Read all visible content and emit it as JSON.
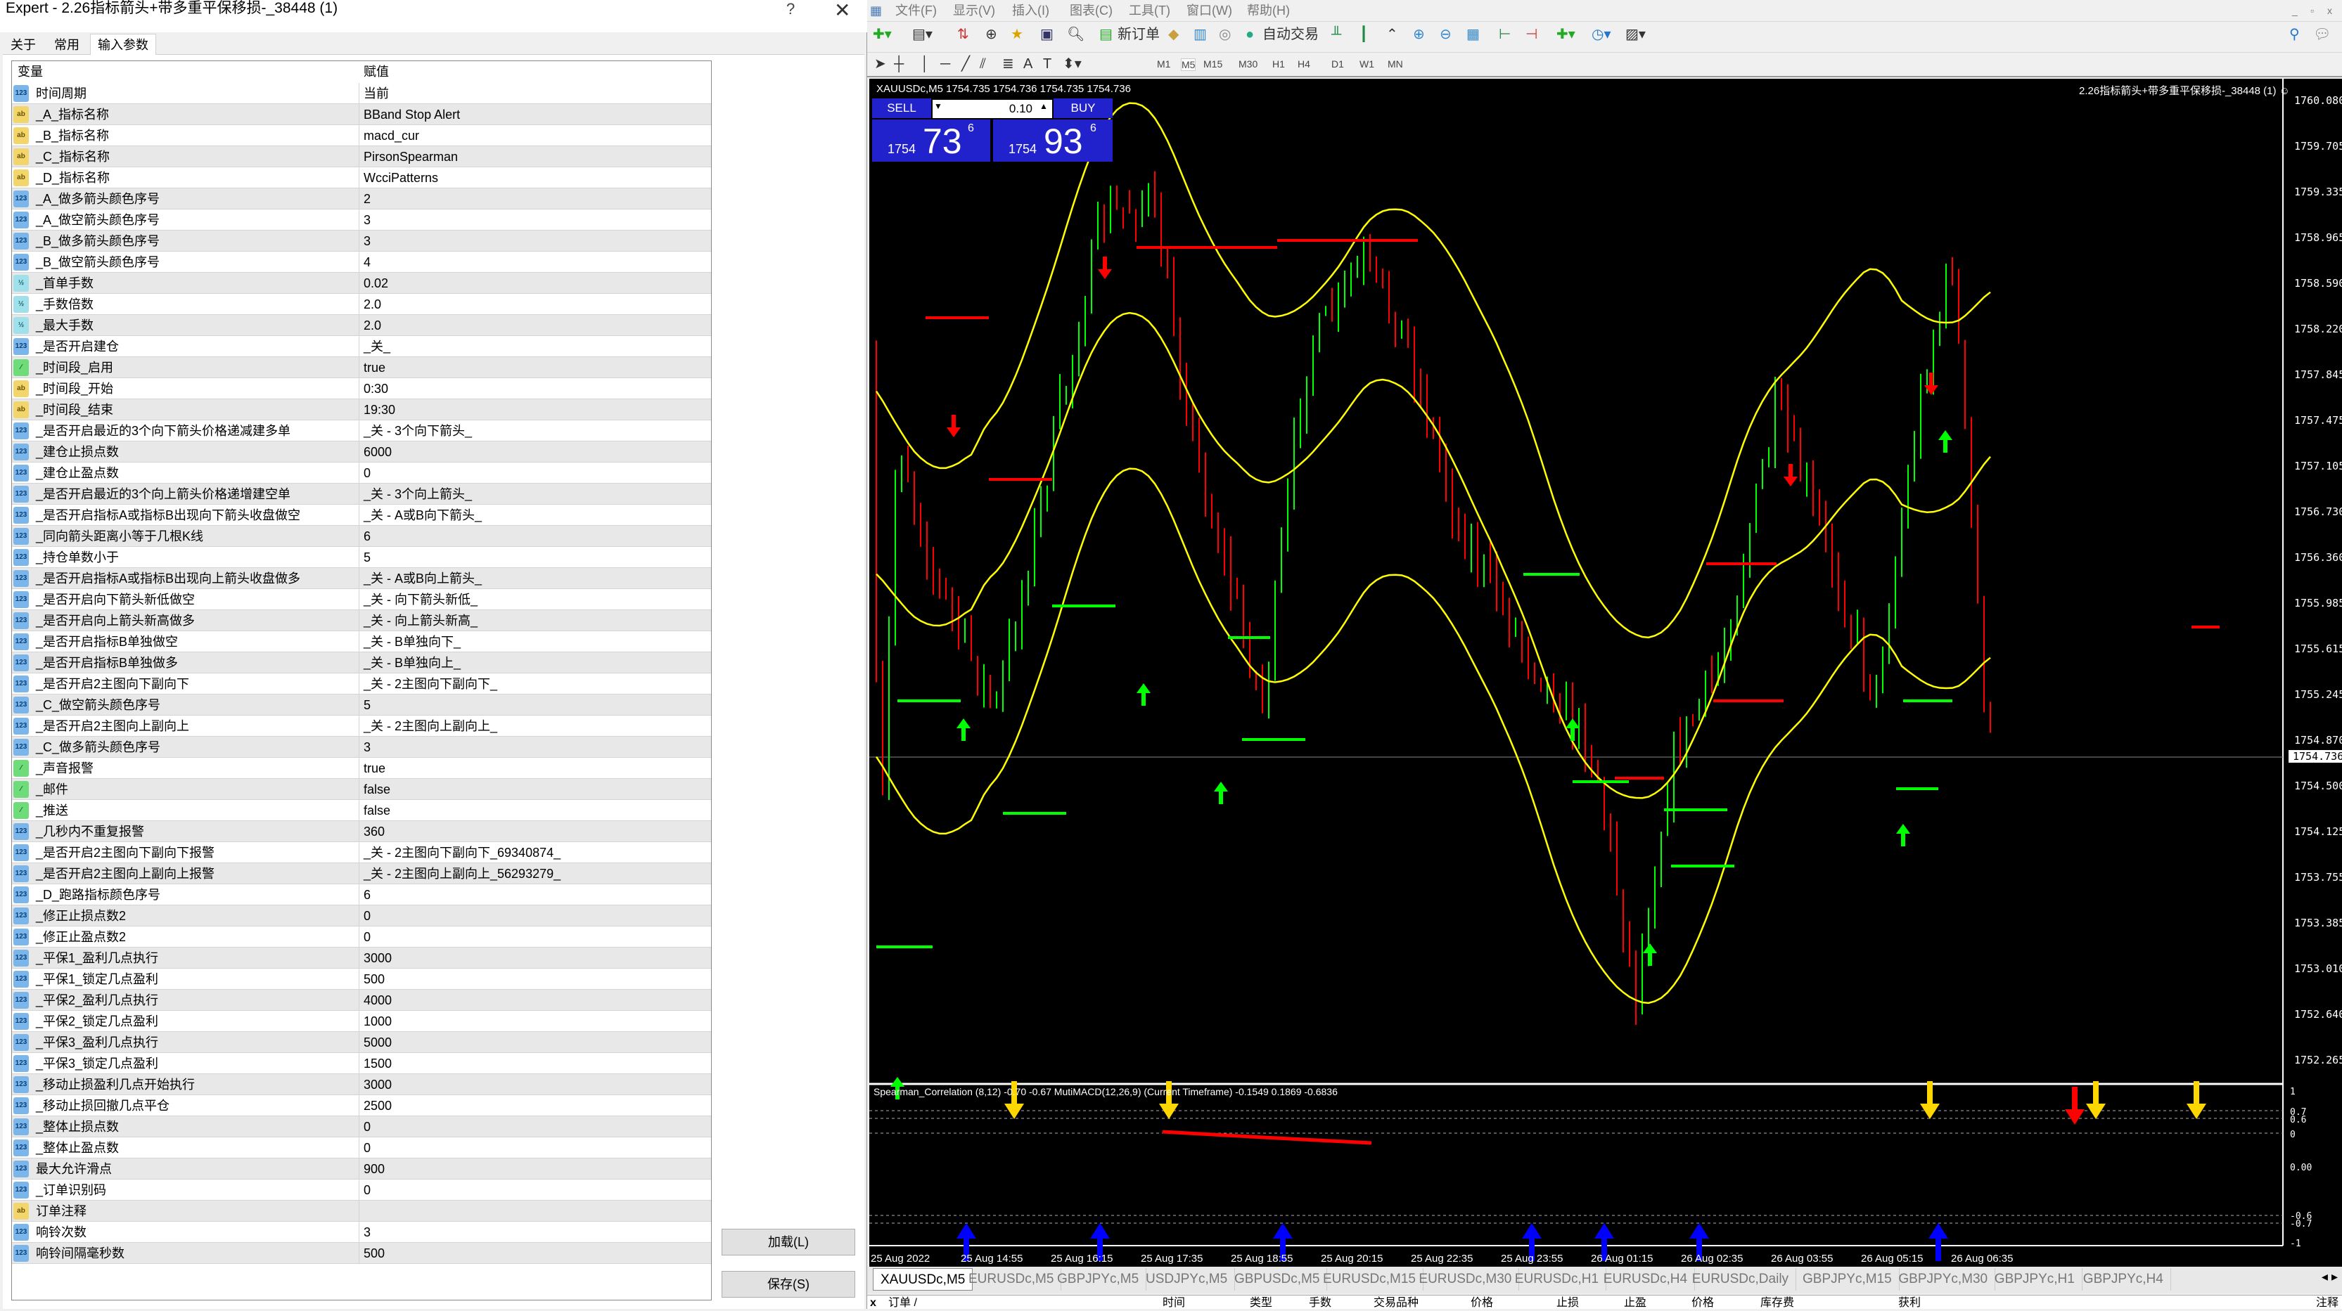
{
  "dialog": {
    "title": "Expert - 2.26指标箭头+带多重平保移损-_38448 (1)",
    "help": "?",
    "close": "✕",
    "tabs": [
      "关于",
      "常用",
      "输入参数"
    ],
    "active_tab": "输入参数",
    "columns": {
      "variable": "变量",
      "value": "赋值"
    },
    "rows": [
      {
        "type": "int",
        "name": "时间周期",
        "value": "当前"
      },
      {
        "type": "str",
        "name": "_A_指标名称",
        "value": "BBand Stop Alert"
      },
      {
        "type": "str",
        "name": "_B_指标名称",
        "value": "macd_cur"
      },
      {
        "type": "str",
        "name": "_C_指标名称",
        "value": "PirsonSpearman"
      },
      {
        "type": "str",
        "name": "_D_指标名称",
        "value": "WcciPatterns"
      },
      {
        "type": "int",
        "name": "_A_做多箭头颜色序号",
        "value": "2"
      },
      {
        "type": "int",
        "name": "_A_做空箭头颜色序号",
        "value": "3"
      },
      {
        "type": "int",
        "name": "_B_做多箭头颜色序号",
        "value": "3"
      },
      {
        "type": "int",
        "name": "_B_做空箭头颜色序号",
        "value": "4"
      },
      {
        "type": "dbl",
        "name": "_首单手数",
        "value": "0.02"
      },
      {
        "type": "dbl",
        "name": "_手数倍数",
        "value": "2.0"
      },
      {
        "type": "dbl",
        "name": "_最大手数",
        "value": "2.0"
      },
      {
        "type": "int",
        "name": "_是否开启建仓",
        "value": "_关_"
      },
      {
        "type": "bool",
        "name": "_时间段_启用",
        "value": "true"
      },
      {
        "type": "str",
        "name": "_时间段_开始",
        "value": "0:30"
      },
      {
        "type": "str",
        "name": "_时间段_结束",
        "value": "19:30"
      },
      {
        "type": "int",
        "name": "_是否开启最近的3个向下箭头价格递减建多单",
        "value": "_关 - 3个向下箭头_"
      },
      {
        "type": "int",
        "name": "_建仓止损点数",
        "value": "6000"
      },
      {
        "type": "int",
        "name": "_建仓止盈点数",
        "value": "0"
      },
      {
        "type": "int",
        "name": "_是否开启最近的3个向上箭头价格递增建空单",
        "value": "_关 - 3个向上箭头_"
      },
      {
        "type": "int",
        "name": "_是否开启指标A或指标B出现向下箭头收盘做空",
        "value": "_关 - A或B向下箭头_"
      },
      {
        "type": "int",
        "name": "_同向箭头距离小等于几根K线",
        "value": "6"
      },
      {
        "type": "int",
        "name": "_持仓单数小于",
        "value": "5"
      },
      {
        "type": "int",
        "name": "_是否开启指标A或指标B出现向上箭头收盘做多",
        "value": "_关 - A或B向上箭头_"
      },
      {
        "type": "int",
        "name": "_是否开启向下箭头新低做空",
        "value": "_关 - 向下箭头新低_"
      },
      {
        "type": "int",
        "name": "_是否开启向上箭头新高做多",
        "value": "_关 - 向上箭头新高_"
      },
      {
        "type": "int",
        "name": "_是否开启指标B单独做空",
        "value": "_关 - B单独向下_"
      },
      {
        "type": "int",
        "name": "_是否开启指标B单独做多",
        "value": "_关 - B单独向上_"
      },
      {
        "type": "int",
        "name": "_是否开启2主图向下副向下",
        "value": "_关 - 2主图向下副向下_"
      },
      {
        "type": "int",
        "name": "_C_做空箭头颜色序号",
        "value": "5"
      },
      {
        "type": "int",
        "name": "_是否开启2主图向上副向上",
        "value": "_关 - 2主图向上副向上_"
      },
      {
        "type": "int",
        "name": "_C_做多箭头颜色序号",
        "value": "3"
      },
      {
        "type": "bool",
        "name": "_声音报警",
        "value": "true"
      },
      {
        "type": "bool",
        "name": "_邮件",
        "value": "false"
      },
      {
        "type": "bool",
        "name": "_推送",
        "value": "false"
      },
      {
        "type": "int",
        "name": "_几秒内不重复报警",
        "value": "360"
      },
      {
        "type": "int",
        "name": "_是否开启2主图向下副向下报警",
        "value": "_关 - 2主图向下副向下_69340874_"
      },
      {
        "type": "int",
        "name": "_是否开启2主图向上副向上报警",
        "value": "_关 - 2主图向上副向上_56293279_"
      },
      {
        "type": "int",
        "name": "_D_跑路指标颜色序号",
        "value": "6"
      },
      {
        "type": "int",
        "name": "_修正止损点数2",
        "value": "0"
      },
      {
        "type": "int",
        "name": "_修正止盈点数2",
        "value": "0"
      },
      {
        "type": "int",
        "name": "_平保1_盈利几点执行",
        "value": "3000"
      },
      {
        "type": "int",
        "name": "_平保1_锁定几点盈利",
        "value": "500"
      },
      {
        "type": "int",
        "name": "_平保2_盈利几点执行",
        "value": "4000"
      },
      {
        "type": "int",
        "name": "_平保2_锁定几点盈利",
        "value": "1000"
      },
      {
        "type": "int",
        "name": "_平保3_盈利几点执行",
        "value": "5000"
      },
      {
        "type": "int",
        "name": "_平保3_锁定几点盈利",
        "value": "1500"
      },
      {
        "type": "int",
        "name": "_移动止损盈利几点开始执行",
        "value": "3000"
      },
      {
        "type": "int",
        "name": "_移动止损回撤几点平仓",
        "value": "2500"
      },
      {
        "type": "int",
        "name": "_整体止损点数",
        "value": "0"
      },
      {
        "type": "int",
        "name": "_整体止盈点数",
        "value": "0"
      },
      {
        "type": "int",
        "name": "最大允许滑点",
        "value": "900"
      },
      {
        "type": "int",
        "name": "_订单识别码",
        "value": "0"
      },
      {
        "type": "str",
        "name": "订单注释",
        "value": ""
      },
      {
        "type": "int",
        "name": "响铃次数",
        "value": "3"
      },
      {
        "type": "int",
        "name": "响铃间隔毫秒数",
        "value": "500"
      }
    ],
    "icon_labels": {
      "int": "123",
      "str": "ab",
      "dbl": "½",
      "bool": "⁄"
    },
    "buttons": {
      "load": "加载(L)",
      "save": "保存(S)"
    }
  },
  "terminal": {
    "menu": [
      "文件(F)",
      "显示(V)",
      "插入(I)",
      "图表(C)",
      "工具(T)",
      "窗口(W)",
      "帮助(H)"
    ],
    "toolbar": {
      "new_order": "新订单",
      "auto_trading": "自动交易"
    },
    "timeframes": [
      "M1",
      "M5",
      "M15",
      "M30",
      "H1",
      "H4",
      "D1",
      "W1",
      "MN"
    ],
    "active_timeframe": "M5",
    "chart": {
      "header": "XAUUSDc,M5  1754.735 1754.736 1754.735 1754.736",
      "ea_label": "2.26指标箭头+带多重平保移损-_38448 (1) ☺",
      "trade_panel": {
        "sell": "SELL",
        "buy": "BUY",
        "volume": "0.10",
        "bid_big": "1754",
        "bid_main": "73",
        "bid_sup": "6",
        "ask_big": "1754",
        "ask_main": "93",
        "ask_sup": "6"
      },
      "price_labels": [
        "1760.080",
        "1759.705",
        "1759.335",
        "1758.965",
        "1758.590",
        "1758.220",
        "1757.845",
        "1757.475",
        "1757.105",
        "1756.730",
        "1756.360",
        "1755.985",
        "1755.615",
        "1755.245",
        "1754.870",
        "1754.500",
        "1754.125",
        "1753.755",
        "1753.385",
        "1753.010",
        "1752.640",
        "1752.265"
      ],
      "current_price": "1754.736",
      "subwindow_label": "Spearman_Correlation (8,12) -0.70 -0.67  MutiMACD(12,26,9) (Current Timeframe) -0.1549 0.1869 -0.6836",
      "subwindow_levels": [
        "1",
        "0.7",
        "0.6",
        "0",
        "0.00",
        "-0.6",
        "-0.7",
        "-1"
      ],
      "time_labels": [
        "25 Aug 2022",
        "25 Aug 14:55",
        "25 Aug 16:15",
        "25 Aug 17:35",
        "25 Aug 18:55",
        "25 Aug 20:15",
        "25 Aug 22:35",
        "25 Aug 23:55",
        "26 Aug 01:15",
        "26 Aug 02:35",
        "26 Aug 03:55",
        "26 Aug 05:15",
        "26 Aug 06:35"
      ],
      "colors": {
        "bull": "#00ff00",
        "bear": "#ff0000",
        "bands": "#ffff00",
        "sub_down": "#ffd700",
        "sub_up": "#0000ff",
        "background": "#000000"
      }
    },
    "chart_tabs": [
      "XAUUSDc,M5",
      "EURUSDc,M5",
      "GBPJPYc,M5",
      "USDJPYc,M5",
      "GBPUSDc,M5",
      "EURUSDc,M15",
      "EURUSDc,M30",
      "EURUSDc,H1",
      "EURUSDc,H4",
      "EURUSDc,Daily",
      "GBPJPYc,M15",
      "GBPJPYc,M30",
      "GBPJPYc,H1",
      "GBPJPYc,H4"
    ],
    "active_chart_tab": "XAUUSDc,M5",
    "list_headers": [
      "订单 /",
      "时间",
      "类型",
      "手数",
      "交易品种",
      "价格",
      "止损",
      "止盈",
      "价格",
      "库存费",
      "获利",
      "注释"
    ]
  }
}
